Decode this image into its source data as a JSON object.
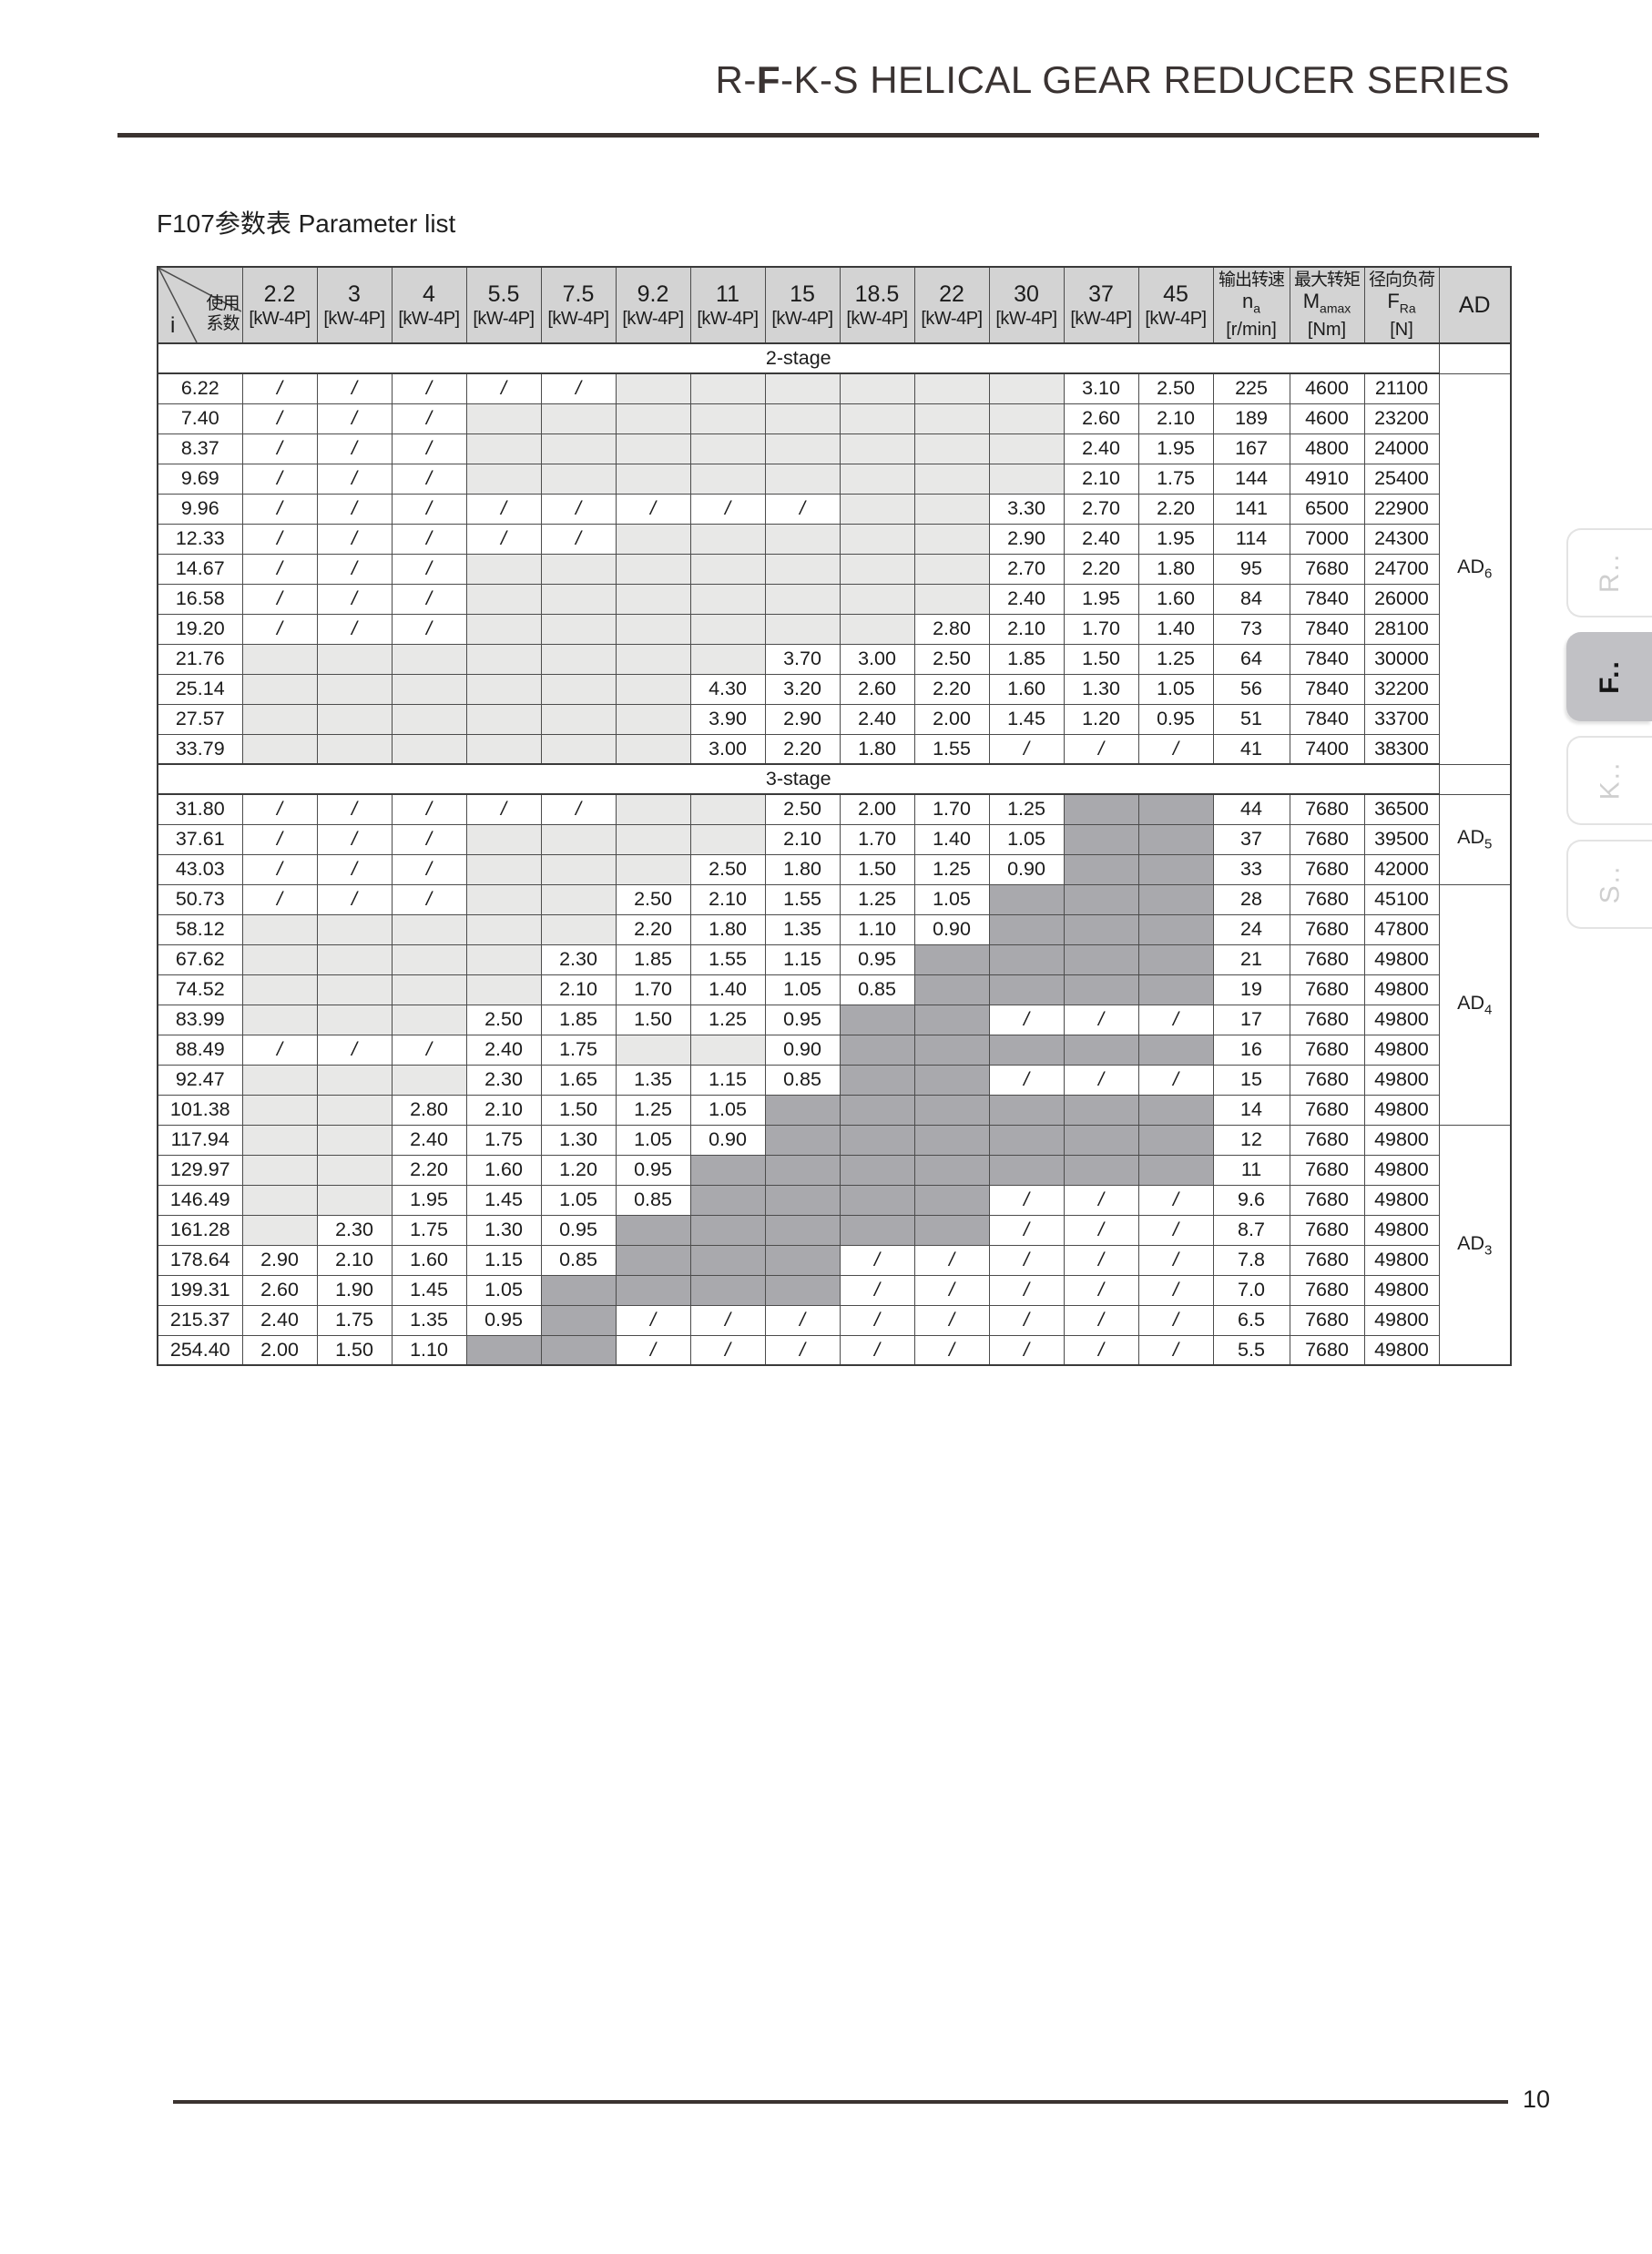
{
  "page": {
    "title": {
      "prefix": "R-",
      "bold": "F",
      "suffix": "-K-S HELICAL GEAR REDUCER SERIES"
    },
    "table_caption": "F107参数表 Parameter list",
    "page_number": "10"
  },
  "side_tabs": [
    {
      "label": "R..",
      "active": false
    },
    {
      "label": "F..",
      "active": true
    },
    {
      "label": "K..",
      "active": false
    },
    {
      "label": "S..",
      "active": false
    }
  ],
  "colors": {
    "header_bg": "#d3d3d3",
    "empty_cell": "#e8e8e7",
    "blocked_cell": "#a9a9ad",
    "rule": "#3b3330"
  },
  "table": {
    "corner": {
      "i_label": "i",
      "usage_line1": "使用",
      "usage_line2": "系数"
    },
    "power_columns": [
      "2.2",
      "3",
      "4",
      "5.5",
      "7.5",
      "9.2",
      "11",
      "15",
      "18.5",
      "22",
      "30",
      "37",
      "45"
    ],
    "power_unit": "[kW-4P]",
    "out_cols": [
      {
        "cn": "输出转速",
        "sym": "n",
        "sub": "a",
        "unit": "[r/min]"
      },
      {
        "cn": "最大转矩",
        "sym": "M",
        "sub": "amax",
        "unit": "[Nm]"
      },
      {
        "cn": "径向负荷",
        "sym": "F",
        "sub": "Ra",
        "unit": "[N]"
      }
    ],
    "ad_header": "AD",
    "cell_legend": {
      "slash": "/",
      "g": "light-gray-empty",
      "G": "dark-gray-blocked"
    },
    "sections": [
      {
        "label": "2-stage",
        "ad_groups": [
          {
            "label": "AD",
            "sub": "6",
            "span": 13
          }
        ],
        "rows": [
          {
            "i": "6.22",
            "c": [
              "/",
              "/",
              "/",
              "/",
              "/",
              "g",
              "g",
              "g",
              "g",
              "g",
              "g",
              "3.10",
              "2.50"
            ],
            "na": "225",
            "m": "4600",
            "f": "21100"
          },
          {
            "i": "7.40",
            "c": [
              "/",
              "/",
              "/",
              "g",
              "g",
              "g",
              "g",
              "g",
              "g",
              "g",
              "g",
              "2.60",
              "2.10"
            ],
            "na": "189",
            "m": "4600",
            "f": "23200"
          },
          {
            "i": "8.37",
            "c": [
              "/",
              "/",
              "/",
              "g",
              "g",
              "g",
              "g",
              "g",
              "g",
              "g",
              "g",
              "2.40",
              "1.95"
            ],
            "na": "167",
            "m": "4800",
            "f": "24000"
          },
          {
            "i": "9.69",
            "c": [
              "/",
              "/",
              "/",
              "g",
              "g",
              "g",
              "g",
              "g",
              "g",
              "g",
              "g",
              "2.10",
              "1.75"
            ],
            "na": "144",
            "m": "4910",
            "f": "25400"
          },
          {
            "i": "9.96",
            "c": [
              "/",
              "/",
              "/",
              "/",
              "/",
              "/",
              "/",
              "/",
              "g",
              "g",
              "3.30",
              "2.70",
              "2.20"
            ],
            "na": "141",
            "m": "6500",
            "f": "22900"
          },
          {
            "i": "12.33",
            "c": [
              "/",
              "/",
              "/",
              "/",
              "/",
              "g",
              "g",
              "g",
              "g",
              "g",
              "2.90",
              "2.40",
              "1.95"
            ],
            "na": "114",
            "m": "7000",
            "f": "24300"
          },
          {
            "i": "14.67",
            "c": [
              "/",
              "/",
              "/",
              "g",
              "g",
              "g",
              "g",
              "g",
              "g",
              "g",
              "2.70",
              "2.20",
              "1.80"
            ],
            "na": "95",
            "m": "7680",
            "f": "24700"
          },
          {
            "i": "16.58",
            "c": [
              "/",
              "/",
              "/",
              "g",
              "g",
              "g",
              "g",
              "g",
              "g",
              "g",
              "2.40",
              "1.95",
              "1.60"
            ],
            "na": "84",
            "m": "7840",
            "f": "26000"
          },
          {
            "i": "19.20",
            "c": [
              "/",
              "/",
              "/",
              "g",
              "g",
              "g",
              "g",
              "g",
              "g",
              "2.80",
              "2.10",
              "1.70",
              "1.40"
            ],
            "na": "73",
            "m": "7840",
            "f": "28100"
          },
          {
            "i": "21.76",
            "c": [
              "g",
              "g",
              "g",
              "g",
              "g",
              "g",
              "g",
              "3.70",
              "3.00",
              "2.50",
              "1.85",
              "1.50",
              "1.25"
            ],
            "na": "64",
            "m": "7840",
            "f": "30000"
          },
          {
            "i": "25.14",
            "c": [
              "g",
              "g",
              "g",
              "g",
              "g",
              "g",
              "4.30",
              "3.20",
              "2.60",
              "2.20",
              "1.60",
              "1.30",
              "1.05"
            ],
            "na": "56",
            "m": "7840",
            "f": "32200"
          },
          {
            "i": "27.57",
            "c": [
              "g",
              "g",
              "g",
              "g",
              "g",
              "g",
              "3.90",
              "2.90",
              "2.40",
              "2.00",
              "1.45",
              "1.20",
              "0.95"
            ],
            "na": "51",
            "m": "7840",
            "f": "33700"
          },
          {
            "i": "33.79",
            "c": [
              "g",
              "g",
              "g",
              "g",
              "g",
              "g",
              "3.00",
              "2.20",
              "1.80",
              "1.55",
              "/",
              "/",
              "/"
            ],
            "na": "41",
            "m": "7400",
            "f": "38300"
          }
        ]
      },
      {
        "label": "3-stage",
        "ad_groups": [
          {
            "label": "AD",
            "sub": "5",
            "span": 3
          },
          {
            "label": "AD",
            "sub": "4",
            "span": 8
          },
          {
            "label": "AD",
            "sub": "3",
            "span": 8
          }
        ],
        "rows": [
          {
            "i": "31.80",
            "c": [
              "/",
              "/",
              "/",
              "/",
              "/",
              "g",
              "g",
              "2.50",
              "2.00",
              "1.70",
              "1.25",
              "G",
              "G"
            ],
            "na": "44",
            "m": "7680",
            "f": "36500"
          },
          {
            "i": "37.61",
            "c": [
              "/",
              "/",
              "/",
              "g",
              "g",
              "g",
              "g",
              "2.10",
              "1.70",
              "1.40",
              "1.05",
              "G",
              "G"
            ],
            "na": "37",
            "m": "7680",
            "f": "39500"
          },
          {
            "i": "43.03",
            "c": [
              "/",
              "/",
              "/",
              "g",
              "g",
              "g",
              "2.50",
              "1.80",
              "1.50",
              "1.25",
              "0.90",
              "G",
              "G"
            ],
            "na": "33",
            "m": "7680",
            "f": "42000"
          },
          {
            "i": "50.73",
            "c": [
              "/",
              "/",
              "/",
              "g",
              "g",
              "2.50",
              "2.10",
              "1.55",
              "1.25",
              "1.05",
              "G",
              "G",
              "G"
            ],
            "na": "28",
            "m": "7680",
            "f": "45100"
          },
          {
            "i": "58.12",
            "c": [
              "g",
              "g",
              "g",
              "g",
              "g",
              "2.20",
              "1.80",
              "1.35",
              "1.10",
              "0.90",
              "G",
              "G",
              "G"
            ],
            "na": "24",
            "m": "7680",
            "f": "47800"
          },
          {
            "i": "67.62",
            "c": [
              "g",
              "g",
              "g",
              "g",
              "2.30",
              "1.85",
              "1.55",
              "1.15",
              "0.95",
              "G",
              "G",
              "G",
              "G"
            ],
            "na": "21",
            "m": "7680",
            "f": "49800"
          },
          {
            "i": "74.52",
            "c": [
              "g",
              "g",
              "g",
              "g",
              "2.10",
              "1.70",
              "1.40",
              "1.05",
              "0.85",
              "G",
              "G",
              "G",
              "G"
            ],
            "na": "19",
            "m": "7680",
            "f": "49800"
          },
          {
            "i": "83.99",
            "c": [
              "g",
              "g",
              "g",
              "2.50",
              "1.85",
              "1.50",
              "1.25",
              "0.95",
              "G",
              "G",
              "/",
              "/",
              "/"
            ],
            "na": "17",
            "m": "7680",
            "f": "49800"
          },
          {
            "i": "88.49",
            "c": [
              "/",
              "/",
              "/",
              "2.40",
              "1.75",
              "g",
              "g",
              "0.90",
              "G",
              "G",
              "G",
              "G",
              "G"
            ],
            "na": "16",
            "m": "7680",
            "f": "49800"
          },
          {
            "i": "92.47",
            "c": [
              "g",
              "g",
              "g",
              "2.30",
              "1.65",
              "1.35",
              "1.15",
              "0.85",
              "G",
              "G",
              "/",
              "/",
              "/"
            ],
            "na": "15",
            "m": "7680",
            "f": "49800"
          },
          {
            "i": "101.38",
            "c": [
              "g",
              "g",
              "2.80",
              "2.10",
              "1.50",
              "1.25",
              "1.05",
              "G",
              "G",
              "G",
              "G",
              "G",
              "G"
            ],
            "na": "14",
            "m": "7680",
            "f": "49800"
          },
          {
            "i": "117.94",
            "c": [
              "g",
              "g",
              "2.40",
              "1.75",
              "1.30",
              "1.05",
              "0.90",
              "G",
              "G",
              "G",
              "G",
              "G",
              "G"
            ],
            "na": "12",
            "m": "7680",
            "f": "49800"
          },
          {
            "i": "129.97",
            "c": [
              "g",
              "g",
              "2.20",
              "1.60",
              "1.20",
              "0.95",
              "G",
              "G",
              "G",
              "G",
              "G",
              "G",
              "G"
            ],
            "na": "11",
            "m": "7680",
            "f": "49800"
          },
          {
            "i": "146.49",
            "c": [
              "g",
              "g",
              "1.95",
              "1.45",
              "1.05",
              "0.85",
              "G",
              "G",
              "G",
              "G",
              "/",
              "/",
              "/"
            ],
            "na": "9.6",
            "m": "7680",
            "f": "49800"
          },
          {
            "i": "161.28",
            "c": [
              "g",
              "2.30",
              "1.75",
              "1.30",
              "0.95",
              "G",
              "G",
              "G",
              "G",
              "G",
              "/",
              "/",
              "/"
            ],
            "na": "8.7",
            "m": "7680",
            "f": "49800"
          },
          {
            "i": "178.64",
            "c": [
              "2.90",
              "2.10",
              "1.60",
              "1.15",
              "0.85",
              "G",
              "G",
              "G",
              "/",
              "/",
              "/",
              "/",
              "/"
            ],
            "na": "7.8",
            "m": "7680",
            "f": "49800"
          },
          {
            "i": "199.31",
            "c": [
              "2.60",
              "1.90",
              "1.45",
              "1.05",
              "G",
              "G",
              "G",
              "G",
              "/",
              "/",
              "/",
              "/",
              "/"
            ],
            "na": "7.0",
            "m": "7680",
            "f": "49800"
          },
          {
            "i": "215.37",
            "c": [
              "2.40",
              "1.75",
              "1.35",
              "0.95",
              "G",
              "/",
              "/",
              "/",
              "/",
              "/",
              "/",
              "/",
              "/"
            ],
            "na": "6.5",
            "m": "7680",
            "f": "49800"
          },
          {
            "i": "254.40",
            "c": [
              "2.00",
              "1.50",
              "1.10",
              "G",
              "G",
              "/",
              "/",
              "/",
              "/",
              "/",
              "/",
              "/",
              "/"
            ],
            "na": "5.5",
            "m": "7680",
            "f": "49800"
          }
        ]
      }
    ]
  }
}
